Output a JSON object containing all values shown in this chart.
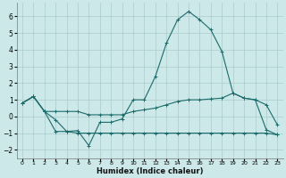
{
  "xlabel": "Humidex (Indice chaleur)",
  "bg_color": "#cce8e8",
  "grid_color": "#aacccc",
  "line_color": "#1a6b6b",
  "xlim": [
    -0.5,
    23.5
  ],
  "ylim": [
    -2.5,
    6.8
  ],
  "yticks": [
    -2,
    -1,
    0,
    1,
    2,
    3,
    4,
    5,
    6
  ],
  "xticks": [
    0,
    1,
    2,
    3,
    4,
    5,
    6,
    7,
    8,
    9,
    10,
    11,
    12,
    13,
    14,
    15,
    16,
    17,
    18,
    19,
    20,
    21,
    22,
    23
  ],
  "line1_x": [
    0,
    1,
    2,
    3,
    4,
    5,
    6,
    7,
    8,
    9,
    10,
    11,
    12,
    13,
    14,
    15,
    16,
    17,
    18,
    19,
    20,
    21,
    22,
    23
  ],
  "line1_y": [
    0.8,
    1.2,
    0.3,
    -0.2,
    -0.9,
    -0.85,
    -1.75,
    -0.35,
    -0.35,
    -0.15,
    1.0,
    1.0,
    2.4,
    4.4,
    5.8,
    6.3,
    5.8,
    5.2,
    3.9,
    1.4,
    1.1,
    1.0,
    0.7,
    -0.5
  ],
  "line2_x": [
    0,
    1,
    2,
    3,
    4,
    5,
    6,
    7,
    8,
    9,
    10,
    11,
    12,
    13,
    14,
    15,
    16,
    17,
    18,
    19,
    20,
    21,
    22,
    23
  ],
  "line2_y": [
    0.8,
    1.2,
    0.3,
    0.3,
    0.3,
    0.3,
    0.1,
    0.1,
    0.1,
    0.1,
    0.3,
    0.4,
    0.5,
    0.7,
    0.9,
    1.0,
    1.0,
    1.05,
    1.1,
    1.4,
    1.1,
    1.0,
    -0.8,
    -1.1
  ],
  "line3_x": [
    0,
    1,
    2,
    3,
    4,
    5,
    6,
    7,
    8,
    9,
    10,
    11,
    12,
    13,
    14,
    15,
    16,
    17,
    18,
    19,
    20,
    21,
    22,
    23
  ],
  "line3_y": [
    0.8,
    1.2,
    0.3,
    -0.9,
    -0.9,
    -1.0,
    -1.0,
    -1.0,
    -1.0,
    -1.0,
    -1.0,
    -1.0,
    -1.0,
    -1.0,
    -1.0,
    -1.0,
    -1.0,
    -1.0,
    -1.0,
    -1.0,
    -1.0,
    -1.0,
    -1.0,
    -1.1
  ]
}
